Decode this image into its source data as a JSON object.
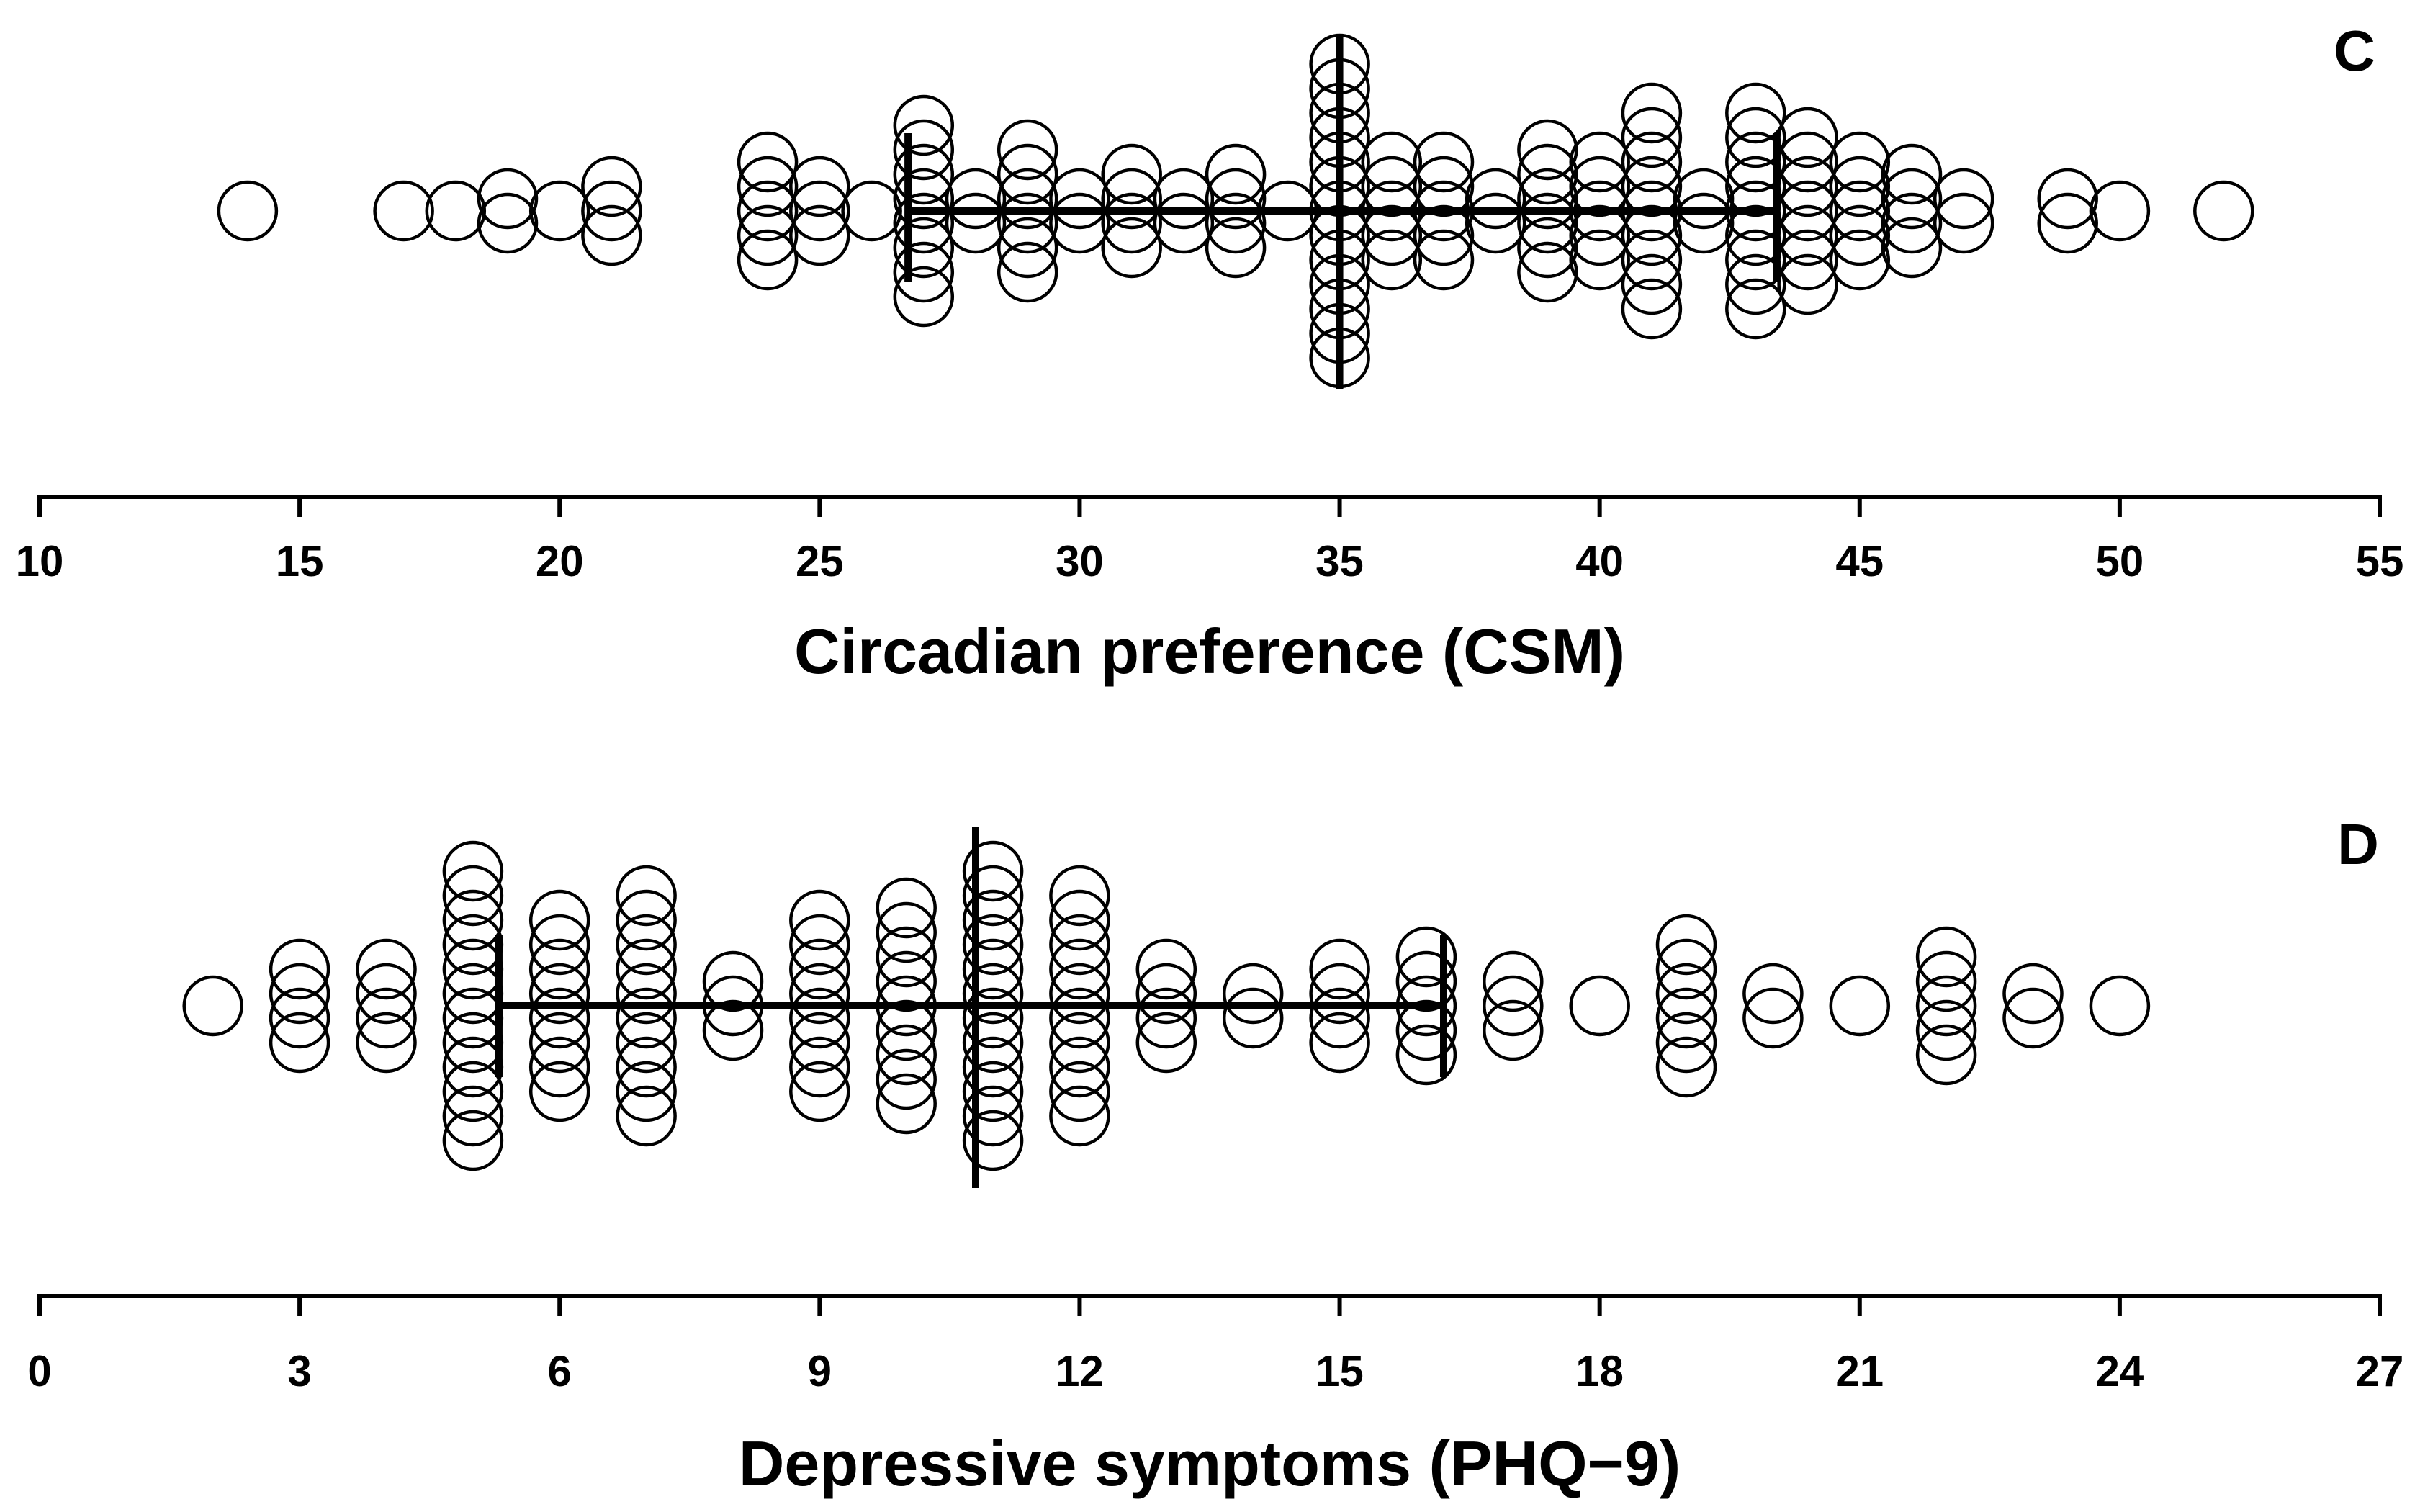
{
  "chart_data": [
    {
      "type": "scatter",
      "subtype": "dot-plot",
      "panel": "C",
      "xlabel": "Circadian preference (CSM)",
      "xlim": [
        10,
        55
      ],
      "ticks": [
        10,
        15,
        20,
        25,
        30,
        35,
        40,
        45,
        50,
        55
      ],
      "tick_labels": [
        "10",
        "15",
        "20",
        "25",
        "30",
        "35",
        "40",
        "45",
        "50",
        "55"
      ],
      "mean": 35.0,
      "sd_low": 26.7,
      "sd_high": 43.4,
      "value_counts": [
        [
          14,
          1
        ],
        [
          17,
          1
        ],
        [
          18,
          1
        ],
        [
          19,
          2
        ],
        [
          20,
          1
        ],
        [
          21,
          3
        ],
        [
          24,
          5
        ],
        [
          25,
          3
        ],
        [
          26,
          1
        ],
        [
          27,
          8
        ],
        [
          28,
          2
        ],
        [
          29,
          6
        ],
        [
          30,
          2
        ],
        [
          31,
          4
        ],
        [
          32,
          2
        ],
        [
          33,
          4
        ],
        [
          34,
          1
        ],
        [
          35,
          13
        ],
        [
          36,
          5
        ],
        [
          37,
          5
        ],
        [
          38,
          2
        ],
        [
          39,
          6
        ],
        [
          40,
          5
        ],
        [
          41,
          9
        ],
        [
          42,
          2
        ],
        [
          43,
          9
        ],
        [
          44,
          7
        ],
        [
          45,
          5
        ],
        [
          46,
          4
        ],
        [
          47,
          2
        ],
        [
          49,
          2
        ],
        [
          50,
          1
        ],
        [
          52,
          1
        ]
      ]
    },
    {
      "type": "scatter",
      "subtype": "dot-plot",
      "panel": "D",
      "xlabel": "Depressive symptoms (PHQ−9)",
      "xlim": [
        0,
        27
      ],
      "ticks": [
        0,
        3,
        6,
        9,
        12,
        15,
        18,
        21,
        24,
        27
      ],
      "tick_labels": [
        "0",
        "3",
        "6",
        "9",
        "12",
        "15",
        "18",
        "21",
        "24",
        "27"
      ],
      "mean": 10.8,
      "sd_low": 5.3,
      "sd_high": 16.2,
      "value_counts": [
        [
          2,
          1
        ],
        [
          3,
          4
        ],
        [
          4,
          4
        ],
        [
          5,
          12
        ],
        [
          6,
          8
        ],
        [
          7,
          10
        ],
        [
          8,
          3
        ],
        [
          9,
          8
        ],
        [
          10,
          9
        ],
        [
          11,
          12
        ],
        [
          12,
          10
        ],
        [
          13,
          4
        ],
        [
          14,
          2
        ],
        [
          15,
          4
        ],
        [
          16,
          5
        ],
        [
          17,
          3
        ],
        [
          18,
          1
        ],
        [
          19,
          6
        ],
        [
          20,
          2
        ],
        [
          21,
          1
        ],
        [
          22,
          5
        ],
        [
          23,
          2
        ],
        [
          24,
          1
        ]
      ]
    }
  ]
}
